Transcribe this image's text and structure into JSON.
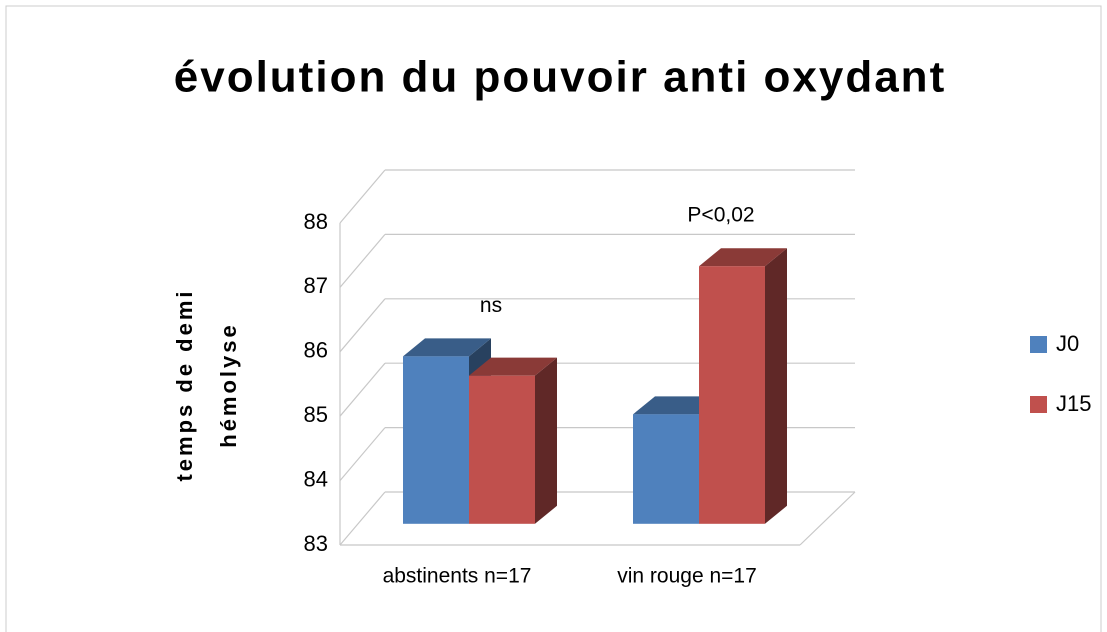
{
  "chart_data": {
    "type": "bar3d",
    "title": "évolution du pouvoir anti oxydant",
    "y_label": [
      "temps de demi",
      "hémolyse"
    ],
    "categories": [
      "abstinents  n=17",
      "vin rouge n=17"
    ],
    "series": [
      {
        "name": "J0",
        "color": "#4f81bd",
        "values": [
          85.6,
          84.7
        ]
      },
      {
        "name": "J15",
        "color": "#c0504d",
        "values": [
          85.3,
          87.0
        ]
      }
    ],
    "annotations": [
      "ns",
      "P<0,02"
    ],
    "ylim": [
      83,
      88
    ],
    "yticks": [
      83,
      84,
      85,
      86,
      87,
      88
    ],
    "grid": true,
    "legend": "right"
  }
}
